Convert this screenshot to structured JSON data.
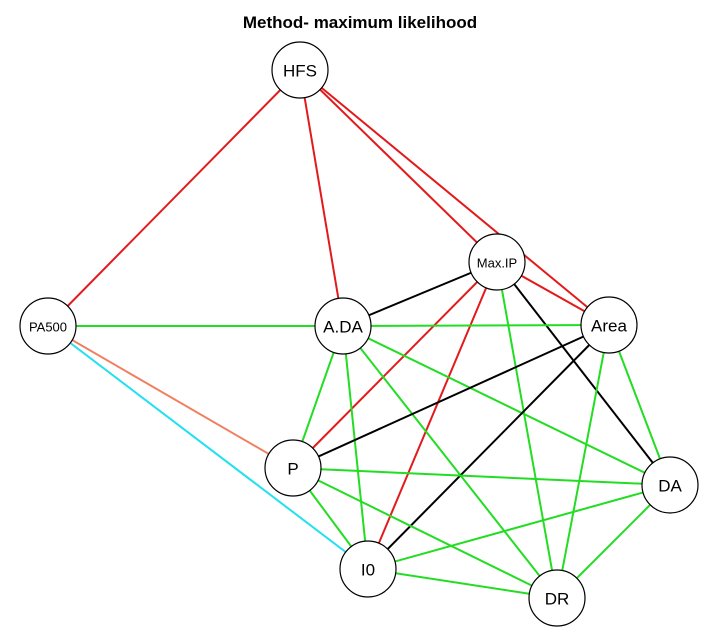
{
  "title": "Method- maximum likelihood",
  "colors": {
    "red": "#e31a1c",
    "green": "#22dd22",
    "black": "#000000",
    "salmon": "#f08060",
    "cyan": "#22e0f0"
  },
  "nodes": [
    {
      "id": "HFS",
      "label": "HFS"
    },
    {
      "id": "PA500",
      "label": "PA500"
    },
    {
      "id": "MaxIP",
      "label": "Max.IP"
    },
    {
      "id": "ADA",
      "label": "A.DA"
    },
    {
      "id": "Area",
      "label": "Area"
    },
    {
      "id": "P",
      "label": "P"
    },
    {
      "id": "DA",
      "label": "DA"
    },
    {
      "id": "I0",
      "label": "I0"
    },
    {
      "id": "DR",
      "label": "DR"
    }
  ],
  "edges": [
    {
      "from": "HFS",
      "to": "PA500",
      "color": "red"
    },
    {
      "from": "HFS",
      "to": "ADA",
      "color": "red"
    },
    {
      "from": "HFS",
      "to": "MaxIP",
      "color": "red"
    },
    {
      "from": "HFS",
      "to": "Area",
      "color": "red"
    },
    {
      "from": "MaxIP",
      "to": "Area",
      "color": "red"
    },
    {
      "from": "MaxIP",
      "to": "P",
      "color": "red"
    },
    {
      "from": "MaxIP",
      "to": "I0",
      "color": "red"
    },
    {
      "from": "MaxIP",
      "to": "ADA",
      "color": "black"
    },
    {
      "from": "MaxIP",
      "to": "DA",
      "color": "black"
    },
    {
      "from": "MaxIP",
      "to": "DR",
      "color": "green"
    },
    {
      "from": "PA500",
      "to": "ADA",
      "color": "green"
    },
    {
      "from": "PA500",
      "to": "P",
      "color": "salmon"
    },
    {
      "from": "PA500",
      "to": "I0",
      "color": "cyan"
    },
    {
      "from": "ADA",
      "to": "Area",
      "color": "green"
    },
    {
      "from": "ADA",
      "to": "P",
      "color": "green"
    },
    {
      "from": "ADA",
      "to": "I0",
      "color": "green"
    },
    {
      "from": "ADA",
      "to": "DA",
      "color": "green"
    },
    {
      "from": "ADA",
      "to": "DR",
      "color": "green"
    },
    {
      "from": "Area",
      "to": "P",
      "color": "black"
    },
    {
      "from": "Area",
      "to": "I0",
      "color": "black"
    },
    {
      "from": "Area",
      "to": "DA",
      "color": "green"
    },
    {
      "from": "Area",
      "to": "DR",
      "color": "green"
    },
    {
      "from": "P",
      "to": "DA",
      "color": "green"
    },
    {
      "from": "P",
      "to": "I0",
      "color": "green"
    },
    {
      "from": "P",
      "to": "DR",
      "color": "green"
    },
    {
      "from": "I0",
      "to": "DA",
      "color": "green"
    },
    {
      "from": "I0",
      "to": "DR",
      "color": "green"
    },
    {
      "from": "DA",
      "to": "DR",
      "color": "green"
    }
  ]
}
